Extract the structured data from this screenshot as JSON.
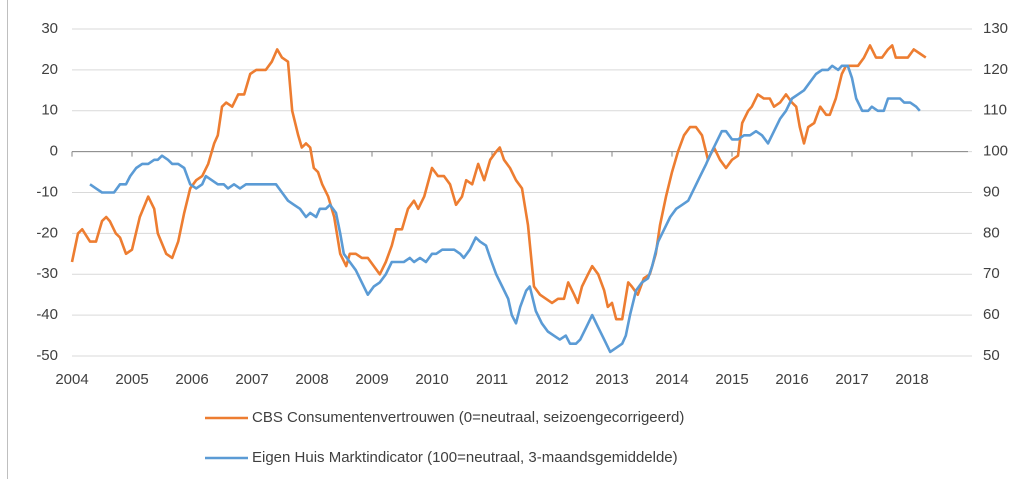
{
  "chart_data": {
    "type": "line",
    "xlim": [
      2004,
      2019
    ],
    "xticks": [
      2004,
      2005,
      2006,
      2007,
      2008,
      2009,
      2010,
      2011,
      2012,
      2013,
      2014,
      2015,
      2016,
      2017,
      2018
    ],
    "ylim": [
      -50,
      30
    ],
    "yticks": [
      -50,
      -40,
      -30,
      -20,
      -10,
      0,
      10,
      20,
      30
    ],
    "y2lim": [
      50,
      130
    ],
    "y2ticks": [
      50,
      60,
      70,
      80,
      90,
      100,
      110,
      120,
      130
    ],
    "grid": true,
    "legend": "bottom",
    "series": [
      {
        "name": "CBS Consumentenvertrouwen (0=neutraal, seizoengecorrigeerd)",
        "color": "#ed7d31",
        "x": [
          2004.0,
          2004.1,
          2004.17,
          2004.3,
          2004.4,
          2004.5,
          2004.57,
          2004.63,
          2004.73,
          2004.8,
          2004.9,
          2005.0,
          2005.13,
          2005.27,
          2005.37,
          2005.43,
          2005.57,
          2005.67,
          2005.77,
          2005.87,
          2005.97,
          2006.07,
          2006.17,
          2006.27,
          2006.37,
          2006.43,
          2006.5,
          2006.57,
          2006.67,
          2006.77,
          2006.87,
          2006.97,
          2007.07,
          2007.23,
          2007.33,
          2007.42,
          2007.5,
          2007.6,
          2007.67,
          2007.77,
          2007.83,
          2007.9,
          2007.97,
          2008.03,
          2008.1,
          2008.17,
          2008.27,
          2008.37,
          2008.47,
          2008.57,
          2008.63,
          2008.73,
          2008.83,
          2008.93,
          2009.03,
          2009.13,
          2009.23,
          2009.33,
          2009.4,
          2009.5,
          2009.6,
          2009.7,
          2009.77,
          2009.87,
          2010.0,
          2010.1,
          2010.2,
          2010.3,
          2010.4,
          2010.5,
          2010.57,
          2010.67,
          2010.77,
          2010.87,
          2010.97,
          2011.07,
          2011.13,
          2011.2,
          2011.3,
          2011.4,
          2011.5,
          2011.6,
          2011.7,
          2011.8,
          2011.9,
          2012.0,
          2012.1,
          2012.2,
          2012.27,
          2012.37,
          2012.43,
          2012.5,
          2012.6,
          2012.67,
          2012.77,
          2012.87,
          2012.93,
          2013.0,
          2013.07,
          2013.17,
          2013.27,
          2013.33,
          2013.43,
          2013.53,
          2013.63,
          2013.73,
          2013.8,
          2013.9,
          2014.0,
          2014.1,
          2014.2,
          2014.3,
          2014.4,
          2014.5,
          2014.6,
          2014.7,
          2014.8,
          2014.9,
          2015.0,
          2015.1,
          2015.17,
          2015.27,
          2015.33,
          2015.43,
          2015.53,
          2015.63,
          2015.7,
          2015.8,
          2015.9,
          2016.0,
          2016.07,
          2016.13,
          2016.2,
          2016.27,
          2016.37,
          2016.47,
          2016.57,
          2016.63,
          2016.73,
          2016.83,
          2016.9,
          2017.0,
          2017.1,
          2017.2,
          2017.3,
          2017.4,
          2017.5,
          2017.6,
          2017.67,
          2017.73,
          2017.83,
          2017.93,
          2018.03,
          2018.13,
          2018.23
        ],
        "values": [
          -27,
          -20,
          -19,
          -22,
          -22,
          -17,
          -16,
          -17,
          -20,
          -21,
          -25,
          -24,
          -16,
          -11,
          -14,
          -20,
          -25,
          -26,
          -22,
          -15,
          -9,
          -7,
          -6,
          -3,
          2,
          4,
          11,
          12,
          11,
          14,
          14,
          19,
          20,
          20,
          22,
          25,
          23,
          22,
          10,
          4,
          1,
          2,
          1,
          -4,
          -5,
          -8,
          -11,
          -16,
          -25,
          -28,
          -25,
          -25,
          -26,
          -26,
          -28,
          -30,
          -27,
          -23,
          -19,
          -19,
          -14,
          -12,
          -14,
          -11,
          -4,
          -6,
          -6,
          -8,
          -13,
          -11,
          -7,
          -8,
          -3,
          -7,
          -2,
          0,
          1,
          -2,
          -4,
          -7,
          -9,
          -18,
          -33,
          -35,
          -36,
          -37,
          -36,
          -36,
          -32,
          -35,
          -37,
          -33,
          -30,
          -28,
          -30,
          -34,
          -38,
          -37,
          -41,
          -41,
          -32,
          -33,
          -35,
          -31,
          -30,
          -25,
          -18,
          -11,
          -5,
          0,
          4,
          6,
          6,
          4,
          -2,
          1,
          -2,
          -4,
          -2,
          -1,
          7,
          10,
          11,
          14,
          13,
          13,
          11,
          12,
          14,
          12,
          11,
          6,
          2,
          6,
          7,
          11,
          9,
          9,
          13,
          19,
          21,
          21,
          21,
          23,
          26,
          23,
          23,
          25,
          26,
          23,
          23,
          23,
          25,
          24,
          23
        ]
      },
      {
        "name": "Eigen Huis Marktindicator (100=neutraal, 3-maandsgemiddelde)",
        "color": "#5b9bd5",
        "axis": "y2",
        "x": [
          2004.3,
          2004.4,
          2004.5,
          2004.6,
          2004.7,
          2004.8,
          2004.9,
          2004.97,
          2005.07,
          2005.17,
          2005.27,
          2005.37,
          2005.43,
          2005.5,
          2005.6,
          2005.67,
          2005.77,
          2005.87,
          2005.97,
          2006.07,
          2006.17,
          2006.23,
          2006.33,
          2006.43,
          2006.53,
          2006.6,
          2006.7,
          2006.8,
          2006.9,
          2007.0,
          2007.13,
          2007.27,
          2007.4,
          2007.5,
          2007.6,
          2007.7,
          2007.8,
          2007.9,
          2007.97,
          2008.07,
          2008.13,
          2008.23,
          2008.3,
          2008.4,
          2008.47,
          2008.53,
          2008.63,
          2008.73,
          2008.83,
          2008.93,
          2009.03,
          2009.13,
          2009.23,
          2009.33,
          2009.43,
          2009.53,
          2009.63,
          2009.7,
          2009.8,
          2009.9,
          2010.0,
          2010.07,
          2010.17,
          2010.27,
          2010.37,
          2010.47,
          2010.53,
          2010.63,
          2010.73,
          2010.8,
          2010.9,
          2010.97,
          2011.07,
          2011.17,
          2011.27,
          2011.33,
          2011.4,
          2011.47,
          2011.57,
          2011.63,
          2011.73,
          2011.83,
          2011.93,
          2012.03,
          2012.13,
          2012.23,
          2012.3,
          2012.4,
          2012.47,
          2012.57,
          2012.67,
          2012.77,
          2012.87,
          2012.97,
          2013.07,
          2013.17,
          2013.23,
          2013.3,
          2013.4,
          2013.5,
          2013.6,
          2013.67,
          2013.77,
          2013.87,
          2013.97,
          2014.07,
          2014.17,
          2014.27,
          2014.37,
          2014.47,
          2014.57,
          2014.63,
          2014.73,
          2014.83,
          2014.9,
          2015.0,
          2015.1,
          2015.2,
          2015.3,
          2015.4,
          2015.5,
          2015.6,
          2015.7,
          2015.8,
          2015.9,
          2016.0,
          2016.1,
          2016.2,
          2016.3,
          2016.4,
          2016.5,
          2016.6,
          2016.67,
          2016.77,
          2016.83,
          2016.93,
          2017.0,
          2017.07,
          2017.17,
          2017.27,
          2017.33,
          2017.43,
          2017.53,
          2017.6,
          2017.7,
          2017.8,
          2017.87,
          2017.97,
          2018.07,
          2018.13
        ],
        "values": [
          92,
          91,
          90,
          90,
          90,
          92,
          92,
          94,
          96,
          97,
          97,
          98,
          98,
          99,
          98,
          97,
          97,
          96,
          92,
          91,
          92,
          94,
          93,
          92,
          92,
          91,
          92,
          91,
          92,
          92,
          92,
          92,
          92,
          90,
          88,
          87,
          86,
          84,
          85,
          84,
          86,
          86,
          87,
          85,
          80,
          75,
          73,
          71,
          68,
          65,
          67,
          68,
          70,
          73,
          73,
          73,
          74,
          73,
          74,
          73,
          75,
          75,
          76,
          76,
          76,
          75,
          74,
          76,
          79,
          78,
          77,
          74,
          70,
          67,
          64,
          60,
          58,
          62,
          66,
          67,
          61,
          58,
          56,
          55,
          54,
          55,
          53,
          53,
          54,
          57,
          60,
          57,
          54,
          51,
          52,
          53,
          55,
          60,
          66,
          68,
          69,
          72,
          78,
          81,
          84,
          86,
          87,
          88,
          91,
          94,
          97,
          99,
          102,
          105,
          105,
          103,
          103,
          104,
          104,
          105,
          104,
          102,
          105,
          108,
          110,
          113,
          114,
          115,
          117,
          119,
          120,
          120,
          121,
          120,
          121,
          121,
          118,
          113,
          110,
          110,
          111,
          110,
          110,
          113,
          113,
          113,
          112,
          112,
          111,
          110
        ]
      }
    ]
  }
}
